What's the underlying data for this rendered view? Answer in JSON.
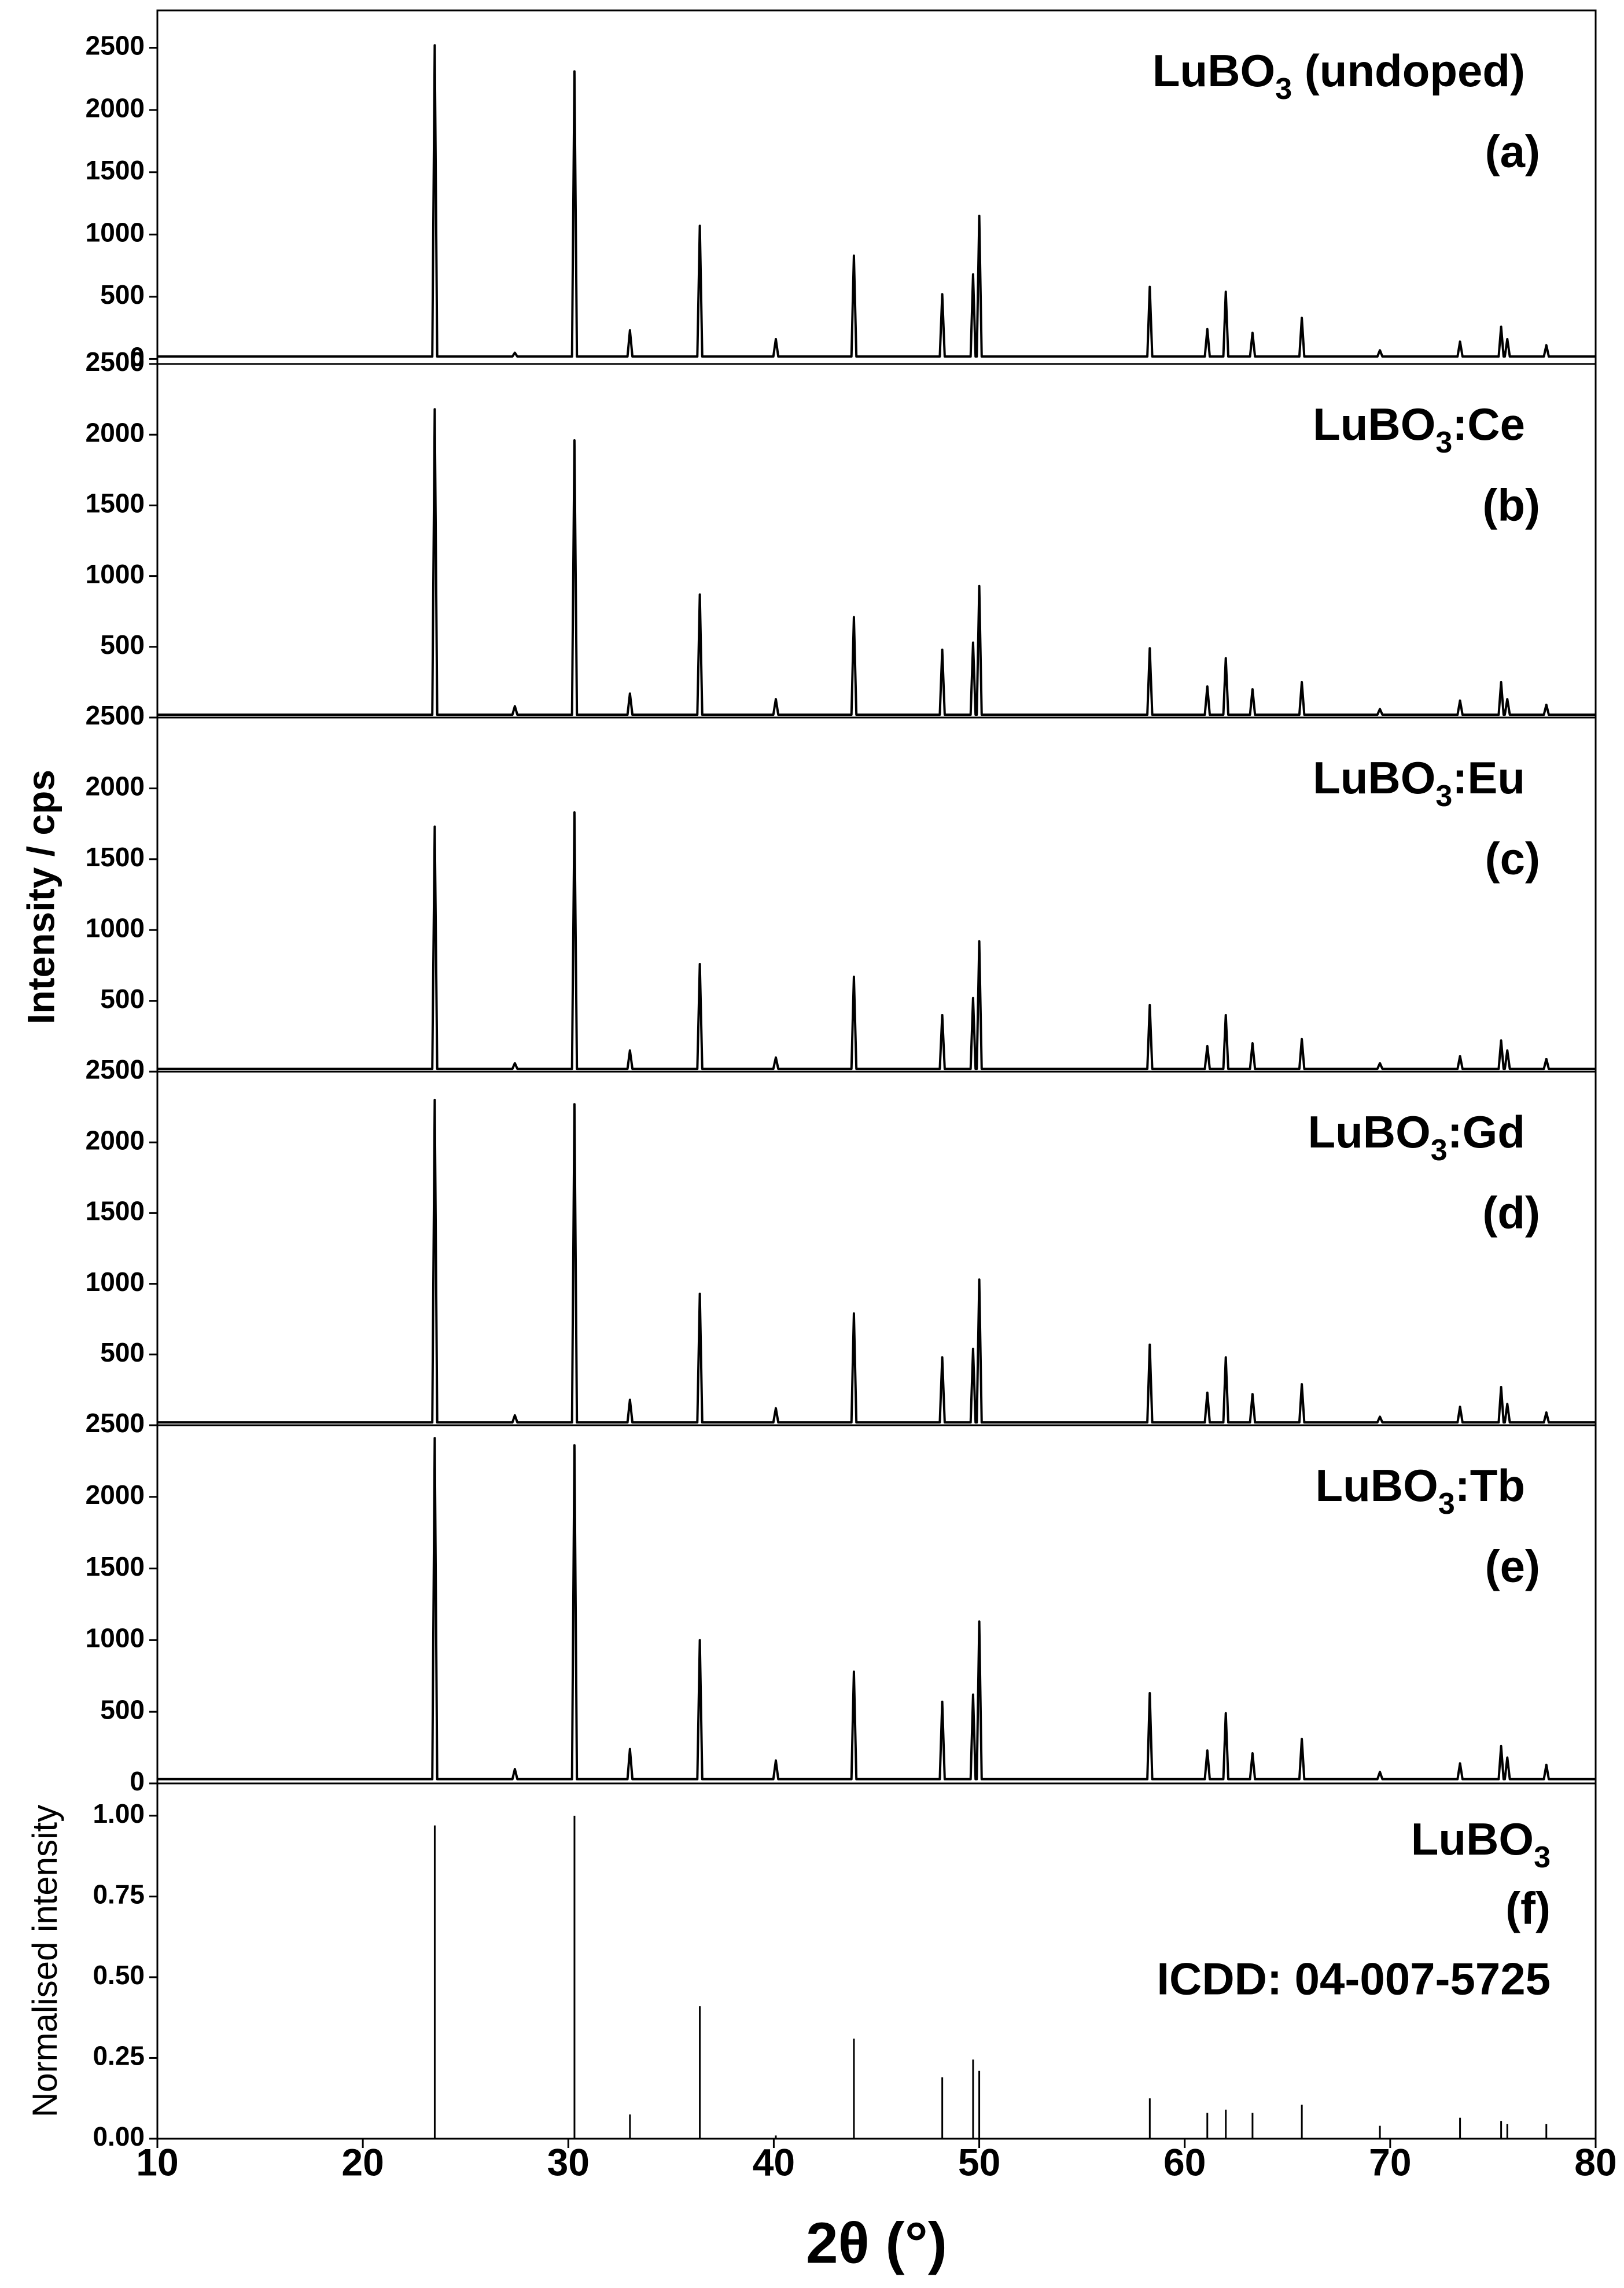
{
  "chart_data": [
    {
      "type": "line",
      "title": [
        "LuBO",
        "3",
        " (undoped)"
      ],
      "label": "(a)",
      "xlim": [
        10,
        80
      ],
      "ylim": [
        -40,
        2800
      ],
      "yticks": [
        0,
        500,
        1000,
        1500,
        2000,
        2500
      ],
      "series": [
        {
          "color": "#000000",
          "x": [
            10,
            23.38,
            23.5,
            23.62,
            27.28,
            27.4,
            27.52,
            30.18,
            30.3,
            30.42,
            32.88,
            33,
            33.12,
            36.28,
            36.4,
            36.52,
            39.98,
            40.1,
            40.22,
            43.78,
            43.9,
            44.02,
            48.08,
            48.2,
            48.32,
            49.58,
            49.7,
            49.82,
            49.88,
            50,
            50.12,
            58.18,
            58.3,
            58.42,
            60.98,
            61.1,
            61.22,
            61.88,
            62,
            62.12,
            63.18,
            63.3,
            63.42,
            65.58,
            65.7,
            65.82,
            69.38,
            69.5,
            69.62,
            73.28,
            73.4,
            73.52,
            75.28,
            75.4,
            75.52,
            75.58,
            75.7,
            75.82,
            77.48,
            77.6,
            77.72,
            80
          ],
          "values": [
            20,
            20,
            2520,
            20,
            20,
            50,
            20,
            20,
            2310,
            20,
            20,
            230,
            20,
            20,
            1070,
            20,
            20,
            160,
            20,
            20,
            830,
            20,
            20,
            520,
            20,
            20,
            680,
            20,
            20,
            1150,
            20,
            20,
            580,
            20,
            20,
            240,
            20,
            20,
            540,
            20,
            20,
            210,
            20,
            20,
            330,
            20,
            20,
            70,
            20,
            20,
            140,
            20,
            20,
            260,
            20,
            20,
            160,
            20,
            20,
            110,
            20,
            20
          ]
        }
      ]
    },
    {
      "type": "line",
      "title": [
        "LuBO",
        "3",
        ":Ce"
      ],
      "label": "(b)",
      "xlim": [
        10,
        80
      ],
      "ylim": [
        0,
        2500
      ],
      "yticks": [
        0,
        500,
        1000,
        1500,
        2000,
        2500
      ],
      "series": [
        {
          "color": "#000000",
          "x": [
            10,
            23.38,
            23.5,
            23.62,
            27.28,
            27.4,
            27.52,
            30.18,
            30.3,
            30.42,
            32.88,
            33,
            33.12,
            36.28,
            36.4,
            36.52,
            39.98,
            40.1,
            40.22,
            43.78,
            43.9,
            44.02,
            48.08,
            48.2,
            48.32,
            49.58,
            49.7,
            49.82,
            49.88,
            50,
            50.12,
            58.18,
            58.3,
            58.42,
            60.98,
            61.1,
            61.22,
            61.88,
            62,
            62.12,
            63.18,
            63.3,
            63.42,
            65.58,
            65.7,
            65.82,
            69.38,
            69.5,
            69.62,
            73.28,
            73.4,
            73.52,
            75.28,
            75.4,
            75.52,
            75.58,
            75.7,
            75.82,
            77.48,
            77.6,
            77.72,
            80
          ],
          "values": [
            20,
            20,
            2180,
            20,
            20,
            80,
            20,
            20,
            1960,
            20,
            20,
            170,
            20,
            20,
            870,
            20,
            20,
            130,
            20,
            20,
            710,
            20,
            20,
            480,
            20,
            20,
            530,
            20,
            20,
            930,
            20,
            20,
            490,
            20,
            20,
            220,
            20,
            20,
            420,
            20,
            20,
            200,
            20,
            20,
            250,
            20,
            20,
            60,
            20,
            20,
            120,
            20,
            20,
            250,
            20,
            20,
            130,
            20,
            20,
            90,
            20,
            20
          ]
        }
      ]
    },
    {
      "type": "line",
      "title": [
        "LuBO",
        "3",
        ":Eu"
      ],
      "label": "(c)",
      "ylabel": "Intensity / cps",
      "xlim": [
        10,
        80
      ],
      "ylim": [
        0,
        2500
      ],
      "yticks": [
        0,
        500,
        1000,
        1500,
        2000,
        2500
      ],
      "series": [
        {
          "color": "#000000",
          "x": [
            10,
            23.38,
            23.5,
            23.62,
            27.28,
            27.4,
            27.52,
            30.18,
            30.3,
            30.42,
            32.88,
            33,
            33.12,
            36.28,
            36.4,
            36.52,
            39.98,
            40.1,
            40.22,
            43.78,
            43.9,
            44.02,
            48.08,
            48.2,
            48.32,
            49.58,
            49.7,
            49.82,
            49.88,
            50,
            50.12,
            58.18,
            58.3,
            58.42,
            60.98,
            61.1,
            61.22,
            61.88,
            62,
            62.12,
            63.18,
            63.3,
            63.42,
            65.58,
            65.7,
            65.82,
            69.38,
            69.5,
            69.62,
            73.28,
            73.4,
            73.52,
            75.28,
            75.4,
            75.52,
            75.58,
            75.7,
            75.82,
            77.48,
            77.6,
            77.72,
            80
          ],
          "values": [
            20,
            20,
            1730,
            20,
            20,
            60,
            20,
            20,
            1830,
            20,
            20,
            150,
            20,
            20,
            760,
            20,
            20,
            100,
            20,
            20,
            670,
            20,
            20,
            400,
            20,
            20,
            520,
            20,
            20,
            920,
            20,
            20,
            470,
            20,
            20,
            180,
            20,
            20,
            400,
            20,
            20,
            200,
            20,
            20,
            230,
            20,
            20,
            60,
            20,
            20,
            110,
            20,
            20,
            220,
            20,
            20,
            150,
            20,
            20,
            90,
            20,
            20
          ]
        }
      ]
    },
    {
      "type": "line",
      "title": [
        "LuBO",
        "3",
        ":Gd"
      ],
      "label": "(d)",
      "xlim": [
        10,
        80
      ],
      "ylim": [
        0,
        2500
      ],
      "yticks": [
        0,
        500,
        1000,
        1500,
        2000,
        2500
      ],
      "series": [
        {
          "color": "#000000",
          "x": [
            10,
            23.38,
            23.5,
            23.62,
            27.28,
            27.4,
            27.52,
            30.18,
            30.3,
            30.42,
            32.88,
            33,
            33.12,
            36.28,
            36.4,
            36.52,
            39.98,
            40.1,
            40.22,
            43.78,
            43.9,
            44.02,
            48.08,
            48.2,
            48.32,
            49.58,
            49.7,
            49.82,
            49.88,
            50,
            50.12,
            58.18,
            58.3,
            58.42,
            60.98,
            61.1,
            61.22,
            61.88,
            62,
            62.12,
            63.18,
            63.3,
            63.42,
            65.58,
            65.7,
            65.82,
            69.38,
            69.5,
            69.62,
            73.28,
            73.4,
            73.52,
            75.28,
            75.4,
            75.52,
            75.58,
            75.7,
            75.82,
            77.48,
            77.6,
            77.72,
            80
          ],
          "values": [
            20,
            20,
            2300,
            20,
            20,
            70,
            20,
            20,
            2270,
            20,
            20,
            180,
            20,
            20,
            930,
            20,
            20,
            120,
            20,
            20,
            790,
            20,
            20,
            480,
            20,
            20,
            540,
            20,
            20,
            1030,
            20,
            20,
            570,
            20,
            20,
            230,
            20,
            20,
            480,
            20,
            20,
            220,
            20,
            20,
            290,
            20,
            20,
            60,
            20,
            20,
            130,
            20,
            20,
            270,
            20,
            20,
            150,
            20,
            20,
            90,
            20,
            20
          ]
        }
      ]
    },
    {
      "type": "line",
      "title": [
        "LuBO",
        "3",
        ":Tb"
      ],
      "label": "(e)",
      "xlim": [
        10,
        80
      ],
      "ylim": [
        0,
        2500
      ],
      "yticks": [
        0,
        500,
        1000,
        1500,
        2000,
        2500
      ],
      "series": [
        {
          "color": "#000000",
          "x": [
            10,
            23.38,
            23.5,
            23.62,
            27.28,
            27.4,
            27.52,
            30.18,
            30.3,
            30.42,
            32.88,
            33,
            33.12,
            36.28,
            36.4,
            36.52,
            39.98,
            40.1,
            40.22,
            43.78,
            43.9,
            44.02,
            48.08,
            48.2,
            48.32,
            49.58,
            49.7,
            49.82,
            49.88,
            50,
            50.12,
            58.18,
            58.3,
            58.42,
            60.98,
            61.1,
            61.22,
            61.88,
            62,
            62.12,
            63.18,
            63.3,
            63.42,
            65.58,
            65.7,
            65.82,
            69.38,
            69.5,
            69.62,
            73.28,
            73.4,
            73.52,
            75.28,
            75.4,
            75.52,
            75.58,
            75.7,
            75.82,
            77.48,
            77.6,
            77.72,
            80
          ],
          "values": [
            30,
            30,
            2410,
            30,
            30,
            100,
            30,
            30,
            2360,
            30,
            30,
            240,
            30,
            30,
            1000,
            30,
            30,
            160,
            30,
            30,
            780,
            30,
            30,
            570,
            30,
            30,
            620,
            30,
            30,
            1130,
            30,
            30,
            630,
            30,
            30,
            230,
            30,
            30,
            490,
            30,
            30,
            210,
            30,
            30,
            310,
            30,
            30,
            80,
            30,
            30,
            140,
            30,
            30,
            260,
            30,
            30,
            180,
            30,
            30,
            130,
            30,
            30
          ]
        }
      ]
    },
    {
      "type": "stick",
      "title": [
        "LuBO",
        "3"
      ],
      "label": "(f)",
      "note": "ICDD: 04-007-5725",
      "ylabel": "Normalised intensity",
      "xlabel": "2θ (°)",
      "xlim": [
        10,
        80
      ],
      "xticks": [
        10,
        20,
        30,
        40,
        50,
        60,
        70,
        80
      ],
      "ylim": [
        0,
        1.1
      ],
      "yticks": [
        {
          "value": 0,
          "label": "0.00"
        },
        {
          "value": 0.25,
          "label": "0.25"
        },
        {
          "value": 0.5,
          "label": "0.50"
        },
        {
          "value": 0.75,
          "label": "0.75"
        },
        {
          "value": 1,
          "label": "1.00"
        }
      ],
      "series": [
        {
          "color": "#000000",
          "x": [
            23.5,
            30.3,
            33.0,
            36.4,
            40.1,
            43.9,
            48.2,
            49.7,
            50.0,
            58.3,
            61.1,
            62.0,
            63.3,
            65.7,
            69.5,
            73.4,
            75.4,
            75.7,
            77.6
          ],
          "values": [
            0.97,
            1.0,
            0.075,
            0.41,
            0.01,
            0.31,
            0.19,
            0.245,
            0.21,
            0.125,
            0.08,
            0.09,
            0.08,
            0.105,
            0.04,
            0.065,
            0.055,
            0.045,
            0.045
          ]
        }
      ]
    }
  ]
}
